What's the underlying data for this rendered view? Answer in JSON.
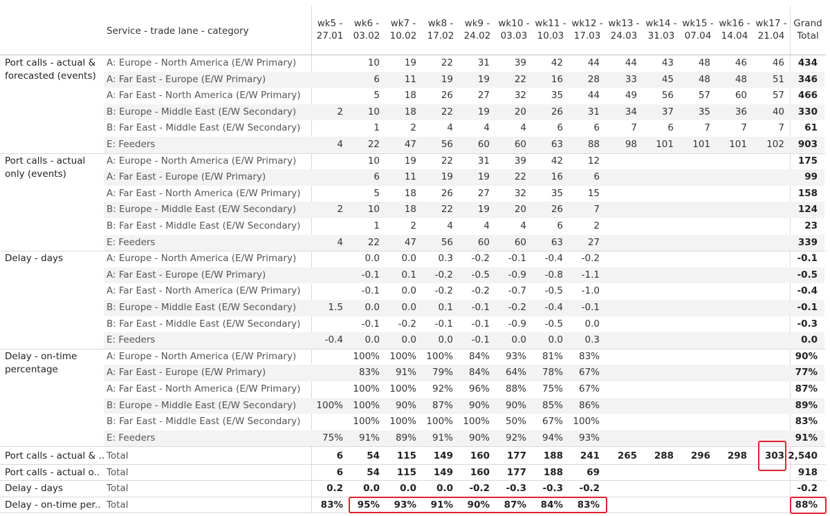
{
  "header": {
    "dimension_label": "Service - trade lane - category",
    "weeks": [
      {
        "line1": "wk5 -",
        "line2": "27.01"
      },
      {
        "line1": "wk6 -",
        "line2": "03.02"
      },
      {
        "line1": "wk7 -",
        "line2": "10.02"
      },
      {
        "line1": "wk8 -",
        "line2": "17.02"
      },
      {
        "line1": "wk9 -",
        "line2": "24.02"
      },
      {
        "line1": "wk10 -",
        "line2": "03.03"
      },
      {
        "line1": "wk11 -",
        "line2": "10.03"
      },
      {
        "line1": "wk12 -",
        "line2": "17.03"
      },
      {
        "line1": "wk13 -",
        "line2": "24.03"
      },
      {
        "line1": "wk14 -",
        "line2": "31.03"
      },
      {
        "line1": "wk15 -",
        "line2": "07.04"
      },
      {
        "line1": "wk16 -",
        "line2": "14.04"
      },
      {
        "line1": "wk17 -",
        "line2": "21.04"
      }
    ],
    "grand_total": {
      "line1": "Grand",
      "line2": "Total"
    }
  },
  "groups": [
    {
      "metric": "Port calls - actual & forecasted (events)",
      "rows": [
        {
          "label": "A: Europe - North America (E/W Primary)",
          "values": [
            "",
            "10",
            "19",
            "22",
            "31",
            "39",
            "42",
            "44",
            "44",
            "43",
            "48",
            "46",
            "46"
          ],
          "total": "434"
        },
        {
          "label": "A: Far East - Europe (E/W Primary)",
          "values": [
            "",
            "6",
            "11",
            "19",
            "19",
            "22",
            "16",
            "28",
            "33",
            "45",
            "48",
            "48",
            "51"
          ],
          "total": "346"
        },
        {
          "label": "A: Far East - North America (E/W Primary)",
          "values": [
            "",
            "5",
            "18",
            "26",
            "27",
            "32",
            "35",
            "44",
            "49",
            "56",
            "57",
            "60",
            "57"
          ],
          "total": "466"
        },
        {
          "label": "B: Europe - Middle East (E/W Secondary)",
          "values": [
            "2",
            "10",
            "18",
            "22",
            "19",
            "20",
            "26",
            "31",
            "34",
            "37",
            "35",
            "36",
            "40"
          ],
          "total": "330"
        },
        {
          "label": "B: Far East - Middle East (E/W Secondary)",
          "values": [
            "",
            "1",
            "2",
            "4",
            "4",
            "4",
            "6",
            "6",
            "7",
            "6",
            "7",
            "7",
            "7"
          ],
          "total": "61"
        },
        {
          "label": "E: Feeders",
          "values": [
            "4",
            "22",
            "47",
            "56",
            "60",
            "60",
            "63",
            "88",
            "98",
            "101",
            "101",
            "101",
            "102"
          ],
          "total": "903"
        }
      ]
    },
    {
      "metric": "Port calls - actual only (events)",
      "rows": [
        {
          "label": "A: Europe - North America (E/W Primary)",
          "values": [
            "",
            "10",
            "19",
            "22",
            "31",
            "39",
            "42",
            "12",
            "",
            "",
            "",
            "",
            ""
          ],
          "total": "175"
        },
        {
          "label": "A: Far East - Europe (E/W Primary)",
          "values": [
            "",
            "6",
            "11",
            "19",
            "19",
            "22",
            "16",
            "6",
            "",
            "",
            "",
            "",
            ""
          ],
          "total": "99"
        },
        {
          "label": "A: Far East - North America (E/W Primary)",
          "values": [
            "",
            "5",
            "18",
            "26",
            "27",
            "32",
            "35",
            "15",
            "",
            "",
            "",
            "",
            ""
          ],
          "total": "158"
        },
        {
          "label": "B: Europe - Middle East (E/W Secondary)",
          "values": [
            "2",
            "10",
            "18",
            "22",
            "19",
            "20",
            "26",
            "7",
            "",
            "",
            "",
            "",
            ""
          ],
          "total": "124"
        },
        {
          "label": "B: Far East - Middle East (E/W Secondary)",
          "values": [
            "",
            "1",
            "2",
            "4",
            "4",
            "4",
            "6",
            "2",
            "",
            "",
            "",
            "",
            ""
          ],
          "total": "23"
        },
        {
          "label": "E: Feeders",
          "values": [
            "4",
            "22",
            "47",
            "56",
            "60",
            "60",
            "63",
            "27",
            "",
            "",
            "",
            "",
            ""
          ],
          "total": "339"
        }
      ]
    },
    {
      "metric": "Delay - days",
      "rows": [
        {
          "label": "A: Europe - North America (E/W Primary)",
          "values": [
            "",
            "0.0",
            "0.0",
            "0.3",
            "-0.2",
            "-0.1",
            "-0.4",
            "-0.2",
            "",
            "",
            "",
            "",
            ""
          ],
          "total": "-0.1"
        },
        {
          "label": "A: Far East - Europe (E/W Primary)",
          "values": [
            "",
            "-0.1",
            "0.1",
            "-0.2",
            "-0.5",
            "-0.9",
            "-0.8",
            "-1.1",
            "",
            "",
            "",
            "",
            ""
          ],
          "total": "-0.5"
        },
        {
          "label": "A: Far East - North America (E/W Primary)",
          "values": [
            "",
            "-0.1",
            "0.0",
            "-0.2",
            "-0.2",
            "-0.7",
            "-0.5",
            "-1.0",
            "",
            "",
            "",
            "",
            ""
          ],
          "total": "-0.4"
        },
        {
          "label": "B: Europe - Middle East (E/W Secondary)",
          "values": [
            "1.5",
            "0.0",
            "0.0",
            "0.1",
            "-0.1",
            "-0.2",
            "-0.4",
            "-0.1",
            "",
            "",
            "",
            "",
            ""
          ],
          "total": "-0.1"
        },
        {
          "label": "B: Far East - Middle East (E/W Secondary)",
          "values": [
            "",
            "-0.1",
            "-0.2",
            "-0.1",
            "-0.1",
            "-0.9",
            "-0.5",
            "0.0",
            "",
            "",
            "",
            "",
            ""
          ],
          "total": "-0.3"
        },
        {
          "label": "E: Feeders",
          "values": [
            "-0.4",
            "0.0",
            "0.0",
            "0.0",
            "-0.1",
            "0.0",
            "0.0",
            "0.3",
            "",
            "",
            "",
            "",
            ""
          ],
          "total": "0.0"
        }
      ]
    },
    {
      "metric": "Delay - on-time percentage",
      "rows": [
        {
          "label": "A: Europe - North America (E/W Primary)",
          "values": [
            "",
            "100%",
            "100%",
            "100%",
            "84%",
            "93%",
            "81%",
            "83%",
            "",
            "",
            "",
            "",
            ""
          ],
          "total": "90%"
        },
        {
          "label": "A: Far East - Europe (E/W Primary)",
          "values": [
            "",
            "83%",
            "91%",
            "79%",
            "84%",
            "64%",
            "78%",
            "67%",
            "",
            "",
            "",
            "",
            ""
          ],
          "total": "77%"
        },
        {
          "label": "A: Far East - North America (E/W Primary)",
          "values": [
            "",
            "100%",
            "100%",
            "92%",
            "96%",
            "88%",
            "75%",
            "67%",
            "",
            "",
            "",
            "",
            ""
          ],
          "total": "87%"
        },
        {
          "label": "B: Europe - Middle East (E/W Secondary)",
          "values": [
            "100%",
            "100%",
            "90%",
            "87%",
            "90%",
            "90%",
            "85%",
            "86%",
            "",
            "",
            "",
            "",
            ""
          ],
          "total": "89%"
        },
        {
          "label": "B: Far East - Middle East (E/W Secondary)",
          "values": [
            "",
            "100%",
            "100%",
            "100%",
            "100%",
            "50%",
            "67%",
            "100%",
            "",
            "",
            "",
            "",
            ""
          ],
          "total": "83%"
        },
        {
          "label": "E: Feeders",
          "values": [
            "75%",
            "91%",
            "89%",
            "91%",
            "90%",
            "92%",
            "94%",
            "93%",
            "",
            "",
            "",
            "",
            ""
          ],
          "total": "91%"
        }
      ]
    }
  ],
  "totals": [
    {
      "metric": "Port calls - actual & ..",
      "label": "Total",
      "values": [
        "6",
        "54",
        "115",
        "149",
        "160",
        "177",
        "188",
        "241",
        "265",
        "288",
        "296",
        "298",
        "303"
      ],
      "total": "2,540"
    },
    {
      "metric": "Port calls - actual o..",
      "label": "Total",
      "values": [
        "6",
        "54",
        "115",
        "149",
        "160",
        "177",
        "188",
        "69",
        "",
        "",
        "",
        "",
        ""
      ],
      "total": "918"
    },
    {
      "metric": "Delay - days",
      "label": "Total",
      "values": [
        "0.2",
        "0.0",
        "0.0",
        "0.0",
        "-0.2",
        "-0.3",
        "-0.3",
        "-0.2",
        "",
        "",
        "",
        "",
        ""
      ],
      "total": "-0.2"
    },
    {
      "metric": "Delay - on-time per..",
      "label": "Total",
      "values": [
        "83%",
        "95%",
        "93%",
        "91%",
        "90%",
        "87%",
        "84%",
        "83%",
        "",
        "",
        "",
        "",
        ""
      ],
      "total": "88%"
    }
  ],
  "colors": {
    "highlight": "#e0202e",
    "stripe": "#f3f3f3",
    "grid": "#d9d9d9"
  }
}
